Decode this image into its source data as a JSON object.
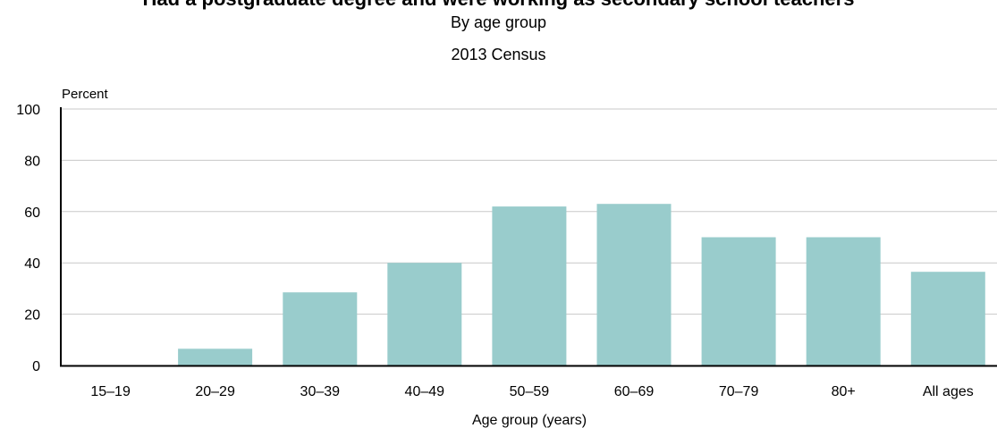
{
  "header": {
    "title": "Had a postgraduate degree and were working as secondary school teachers",
    "subtitle": "By age group",
    "subtitle2": "2013 Census"
  },
  "colors": {
    "bar": "#99cccc",
    "gridline": "#c8c8c8",
    "axis": "#000000"
  },
  "chart_data": {
    "type": "bar",
    "title": "Had a postgraduate degree and were working as secondary school teachers",
    "subtitle": "By age group",
    "subtitle2": "2013 Census",
    "xlabel": "Age group (years)",
    "ylabel": "Percent",
    "ylim": [
      0,
      100
    ],
    "yticks": [
      0,
      20,
      40,
      60,
      80,
      100
    ],
    "grid": true,
    "legend": "none",
    "categories": [
      "15–19",
      "20–29",
      "30–39",
      "40–49",
      "50–59",
      "60–69",
      "70–79",
      "80+",
      "All ages"
    ],
    "values": [
      0,
      6.5,
      28.5,
      40,
      62,
      63,
      50,
      50,
      36.5
    ]
  }
}
